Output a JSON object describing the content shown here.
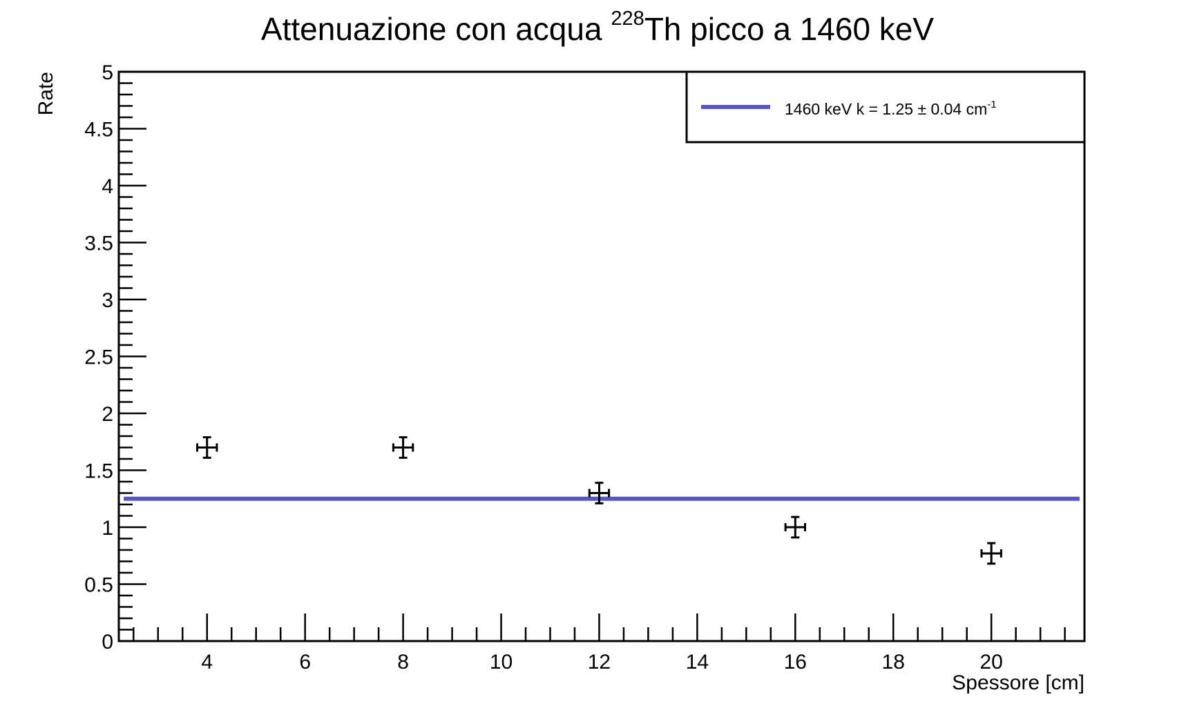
{
  "chart_data": {
    "type": "scatter",
    "title": {
      "prefix": "Attenuazione con acqua ",
      "superscript": "228",
      "suffix": "Th picco a 1460 keV"
    },
    "xlabel": "Spessore [cm]",
    "ylabel": "Rate",
    "xlim": [
      2.2,
      21.9
    ],
    "ylim": [
      0,
      5
    ],
    "x_ticks": [
      4,
      6,
      8,
      10,
      12,
      14,
      16,
      18,
      20
    ],
    "y_ticks": [
      0,
      0.5,
      1,
      1.5,
      2,
      2.5,
      3,
      3.5,
      4,
      4.5,
      5
    ],
    "x_tick_labels": [
      "4",
      "6",
      "8",
      "10",
      "12",
      "14",
      "16",
      "18",
      "20"
    ],
    "y_tick_labels": [
      "0",
      "0.5",
      "1",
      "1.5",
      "2",
      "2.5",
      "3",
      "3.5",
      "4",
      "4.5",
      "5"
    ],
    "grid": false,
    "points": [
      {
        "x": 4,
        "y": 1.7,
        "xerr": 0.2,
        "yerr": 0.09
      },
      {
        "x": 8,
        "y": 1.7,
        "xerr": 0.2,
        "yerr": 0.09
      },
      {
        "x": 12,
        "y": 1.3,
        "xerr": 0.2,
        "yerr": 0.09
      },
      {
        "x": 16,
        "y": 1.0,
        "xerr": 0.2,
        "yerr": 0.09
      },
      {
        "x": 20,
        "y": 0.77,
        "xerr": 0.2,
        "yerr": 0.09
      }
    ],
    "fit_line": {
      "y": 1.25,
      "x_range": [
        2.3,
        21.8
      ],
      "color": "#5555cc"
    },
    "legend": {
      "position": "top-right",
      "entries": [
        {
          "label_main": "1460 keV   k = 1.25 ± 0.04 cm",
          "label_sup": "-1",
          "color": "#5555cc"
        }
      ]
    },
    "colors": {
      "points": "#000000",
      "fit": "#5555cc",
      "frame": "#000000"
    }
  }
}
